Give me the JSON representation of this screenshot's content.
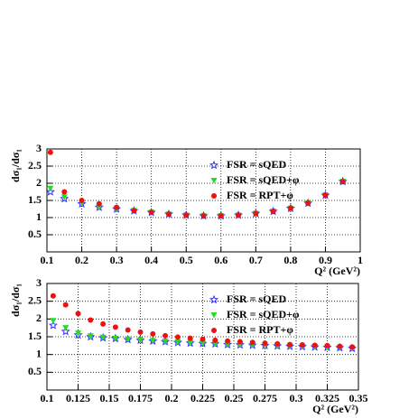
{
  "chart_data": [
    {
      "type": "scatter",
      "ylabel": "dσ₁/dσ₁",
      "xlabel": "Q² (GeV²)",
      "x": [
        0.11,
        0.15,
        0.2,
        0.25,
        0.3,
        0.35,
        0.4,
        0.45,
        0.5,
        0.55,
        0.6,
        0.65,
        0.7,
        0.75,
        0.8,
        0.85,
        0.9,
        0.95
      ],
      "series": [
        {
          "name": "FSR = sQED",
          "color": "#3333ff",
          "marker": "open-star",
          "values": [
            1.75,
            1.55,
            1.4,
            1.3,
            1.25,
            1.2,
            1.15,
            1.1,
            1.07,
            1.05,
            1.05,
            1.07,
            1.12,
            1.18,
            1.27,
            1.42,
            1.65,
            2.05
          ]
        },
        {
          "name": "FSR = sQED+φ",
          "color": "#22dd22",
          "marker": "triangle-down",
          "values": [
            1.85,
            1.6,
            1.42,
            1.3,
            1.25,
            1.2,
            1.15,
            1.1,
            1.07,
            1.05,
            1.05,
            1.07,
            1.12,
            1.18,
            1.27,
            1.42,
            1.65,
            2.05
          ]
        },
        {
          "name": "FSR = RPT+φ",
          "color": "#ee1111",
          "marker": "circle",
          "values": [
            2.9,
            1.75,
            1.5,
            1.4,
            1.3,
            1.2,
            1.15,
            1.1,
            1.07,
            1.05,
            1.05,
            1.07,
            1.12,
            1.18,
            1.27,
            1.42,
            1.65,
            2.05
          ]
        }
      ],
      "xlim": [
        0.1,
        1
      ],
      "ylim": [
        0,
        3
      ],
      "xticks": [
        0.1,
        0.2,
        0.3,
        0.4,
        0.5,
        0.6,
        0.7,
        0.8,
        0.9,
        1
      ],
      "yticks": [
        0.5,
        1,
        1.5,
        2,
        2.5,
        3
      ],
      "grid": true
    },
    {
      "type": "scatter",
      "ylabel": "dσ₁/dσ₁",
      "xlabel": "Q² (GeV²)",
      "x": [
        0.105,
        0.115,
        0.125,
        0.135,
        0.145,
        0.155,
        0.165,
        0.175,
        0.185,
        0.195,
        0.205,
        0.215,
        0.225,
        0.235,
        0.245,
        0.255,
        0.265,
        0.275,
        0.285,
        0.295,
        0.305,
        0.315,
        0.325,
        0.335,
        0.345
      ],
      "series": [
        {
          "name": "FSR = sQED",
          "color": "#3333ff",
          "marker": "open-star",
          "values": [
            1.82,
            1.65,
            1.55,
            1.5,
            1.47,
            1.45,
            1.42,
            1.4,
            1.38,
            1.36,
            1.34,
            1.32,
            1.31,
            1.3,
            1.28,
            1.27,
            1.26,
            1.25,
            1.24,
            1.23,
            1.22,
            1.21,
            1.2,
            1.19,
            1.17
          ]
        },
        {
          "name": "FSR = sQED+φ",
          "color": "#22dd22",
          "marker": "triangle-down",
          "values": [
            1.95,
            1.75,
            1.6,
            1.52,
            1.48,
            1.45,
            1.43,
            1.41,
            1.39,
            1.37,
            1.35,
            1.33,
            1.32,
            1.3,
            1.29,
            1.28,
            1.27,
            1.26,
            1.25,
            1.24,
            1.23,
            1.22,
            1.21,
            1.2,
            1.18
          ]
        },
        {
          "name": "FSR = RPT+φ",
          "color": "#ee1111",
          "marker": "circle",
          "values": [
            2.65,
            2.4,
            2.15,
            1.97,
            1.86,
            1.77,
            1.69,
            1.63,
            1.58,
            1.53,
            1.49,
            1.46,
            1.43,
            1.4,
            1.38,
            1.36,
            1.34,
            1.32,
            1.3,
            1.28,
            1.27,
            1.26,
            1.25,
            1.23,
            1.21
          ]
        }
      ],
      "xlim": [
        0.1,
        0.35
      ],
      "ylim": [
        0,
        3
      ],
      "xticks": [
        0.1,
        0.125,
        0.15,
        0.175,
        0.2,
        0.225,
        0.25,
        0.275,
        0.3,
        0.325,
        0.35
      ],
      "yticks": [
        0.5,
        1,
        1.5,
        2,
        2.5,
        3
      ],
      "grid": true
    }
  ]
}
